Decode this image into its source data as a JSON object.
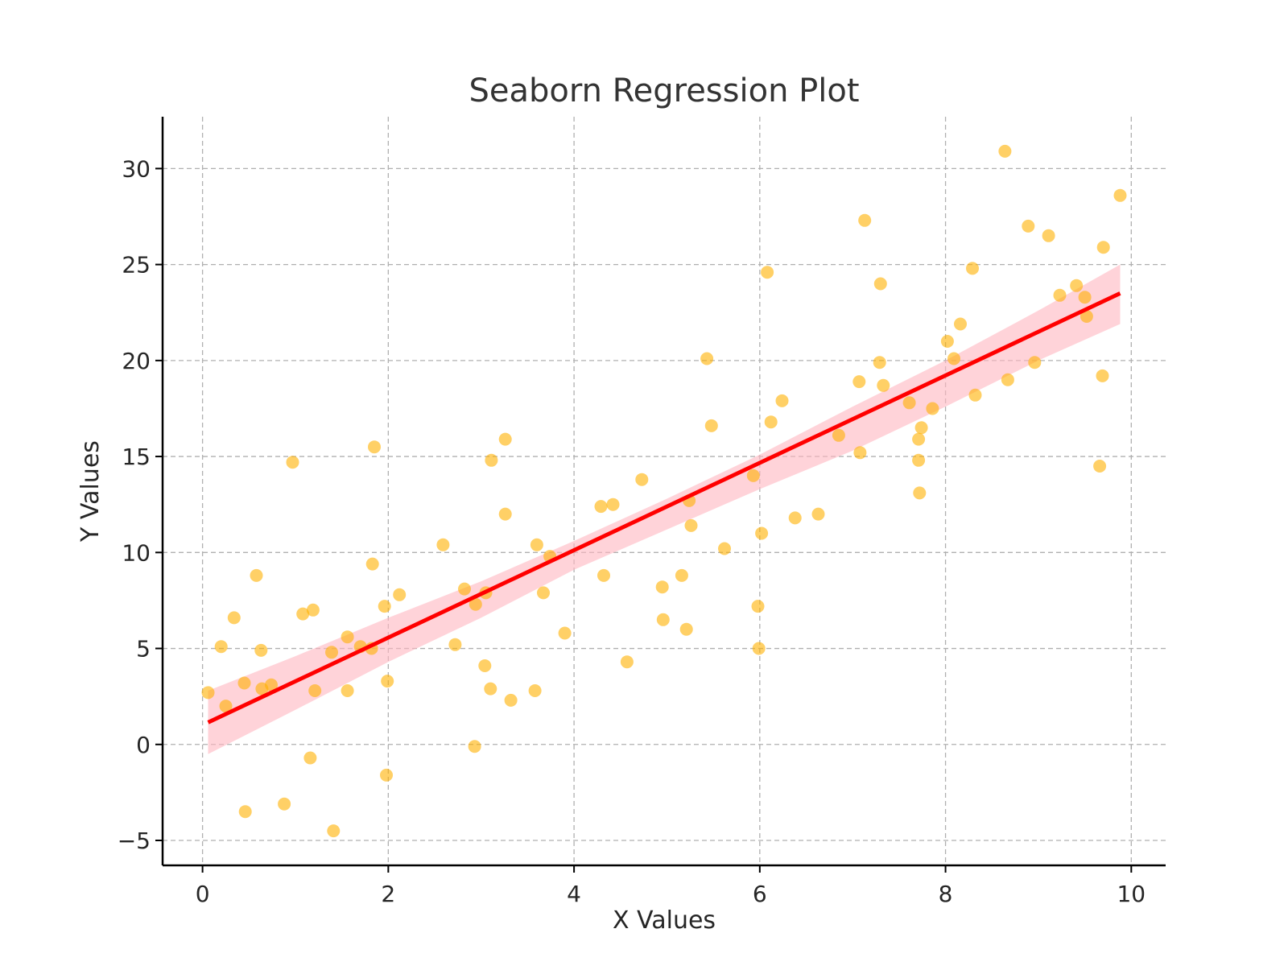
{
  "chart_data": {
    "type": "scatter",
    "title": "Seaborn Regression Plot",
    "xlabel": "X Values",
    "ylabel": "Y Values",
    "xlim": [
      -0.43,
      10.37
    ],
    "ylim": [
      -6.3,
      32.7
    ],
    "xticks": [
      0,
      2,
      4,
      6,
      8,
      10
    ],
    "xtick_labels": [
      "0",
      "2",
      "4",
      "6",
      "8",
      "10"
    ],
    "yticks": [
      -5,
      0,
      5,
      10,
      15,
      20,
      25,
      30
    ],
    "ytick_labels": [
      "−5",
      "0",
      "5",
      "10",
      "15",
      "20",
      "25",
      "30"
    ],
    "grid": true,
    "colors": {
      "points": "#ffb000",
      "line": "#ff0000",
      "band": "#ffb6bf",
      "grid": "#b0b0b0"
    },
    "series": [
      {
        "type": "scatter",
        "x": [
          0.06,
          0.2,
          0.25,
          0.34,
          0.45,
          0.46,
          0.58,
          0.63,
          0.64,
          0.74,
          0.88,
          0.97,
          1.08,
          1.16,
          1.19,
          1.21,
          1.39,
          1.41,
          1.7,
          1.56,
          1.56,
          1.82,
          1.83,
          1.85,
          1.96,
          1.98,
          1.99,
          2.12,
          2.59,
          2.72,
          2.82,
          2.93,
          2.94,
          3.04,
          3.05,
          3.1,
          3.11,
          3.26,
          3.26,
          3.32,
          3.58,
          3.6,
          3.67,
          3.74,
          3.9,
          4.29,
          4.32,
          4.42,
          4.57,
          4.73,
          4.95,
          4.96,
          5.16,
          5.21,
          5.24,
          5.26,
          5.43,
          5.48,
          5.62,
          5.93,
          5.98,
          5.99,
          6.02,
          6.08,
          6.12,
          6.24,
          6.38,
          6.63,
          6.85,
          7.07,
          7.08,
          7.13,
          7.29,
          7.3,
          7.33,
          7.61,
          7.71,
          7.71,
          7.72,
          7.74,
          7.86,
          8.02,
          8.09,
          8.16,
          8.29,
          8.32,
          8.64,
          8.67,
          8.89,
          8.96,
          9.11,
          9.23,
          9.41,
          9.5,
          9.52,
          9.66,
          9.69,
          9.7,
          9.88
        ],
        "y": [
          2.7,
          5.1,
          2.0,
          6.6,
          3.2,
          -3.5,
          8.8,
          4.9,
          2.9,
          3.1,
          -3.1,
          14.7,
          6.8,
          -0.7,
          7.0,
          2.8,
          4.8,
          -4.5,
          5.1,
          5.6,
          2.8,
          5.0,
          9.4,
          15.5,
          7.2,
          -1.6,
          3.3,
          7.8,
          10.4,
          5.2,
          8.1,
          -0.1,
          7.3,
          4.1,
          7.9,
          2.9,
          14.8,
          12.0,
          15.9,
          2.3,
          2.8,
          10.4,
          7.9,
          9.8,
          5.8,
          12.4,
          8.8,
          12.5,
          4.3,
          13.8,
          8.2,
          6.5,
          8.8,
          6.0,
          12.7,
          11.4,
          20.1,
          16.6,
          10.2,
          14.0,
          7.2,
          5.0,
          11.0,
          24.6,
          16.8,
          17.9,
          11.8,
          12.0,
          16.1,
          18.9,
          15.2,
          27.3,
          19.9,
          24.0,
          18.7,
          17.8,
          15.9,
          14.8,
          13.1,
          16.5,
          17.5,
          21.0,
          20.1,
          21.9,
          24.8,
          18.2,
          30.9,
          19.0,
          27.0,
          19.9,
          26.5,
          23.4,
          23.9,
          23.3,
          22.3,
          14.5,
          19.2,
          25.9,
          28.6
        ]
      },
      {
        "type": "line",
        "x": [
          0.06,
          9.88
        ],
        "y": [
          1.15,
          23.5
        ]
      },
      {
        "type": "area",
        "x": [
          0.06,
          1.0,
          2.0,
          3.0,
          4.0,
          5.0,
          6.0,
          7.0,
          8.0,
          9.0,
          9.88
        ],
        "y_upper": [
          2.8,
          4.6,
          6.6,
          8.5,
          10.6,
          12.8,
          15.1,
          17.6,
          20.0,
          22.6,
          25.0
        ],
        "y_lower": [
          -0.5,
          1.8,
          4.3,
          6.6,
          9.1,
          11.2,
          13.3,
          15.3,
          17.6,
          20.0,
          21.9
        ]
      }
    ]
  }
}
